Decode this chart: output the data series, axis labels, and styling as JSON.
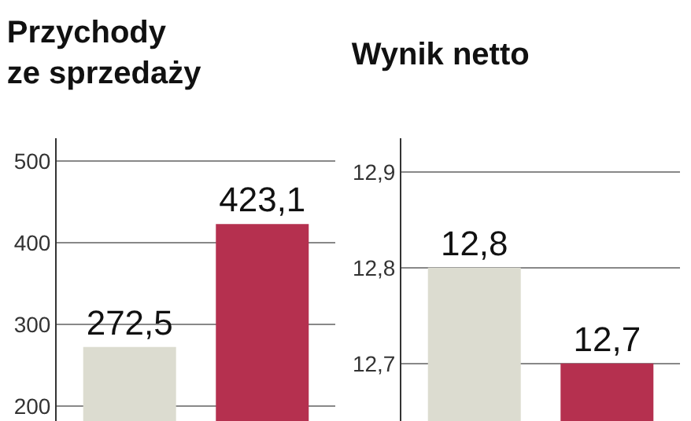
{
  "chart_data": [
    {
      "type": "bar",
      "title": "Przychody\nze sprzedaży",
      "categories": [
        null,
        null
      ],
      "values": [
        272.5,
        423.1
      ],
      "colors": [
        "#dcdcd0",
        "#b5304f"
      ],
      "value_labels": [
        "272,5",
        "423,1"
      ],
      "ylim": [
        182,
        528
      ],
      "yticks": [
        200,
        300,
        400,
        500
      ],
      "grid": "y",
      "tick_labels": "y"
    },
    {
      "type": "bar",
      "title": "Wynik netto",
      "categories": [
        null,
        null
      ],
      "values": [
        12.8,
        12.7
      ],
      "colors": [
        "#dcdcd0",
        "#b5304f"
      ],
      "value_labels": [
        "12,8",
        "12,7"
      ],
      "ylim": [
        12.64,
        12.935
      ],
      "yticks": [
        {
          "value": 12.7,
          "label": "12,7"
        },
        {
          "value": 12.8,
          "label": "12,8"
        },
        {
          "value": 12.9,
          "label": "12,9"
        }
      ],
      "grid": "y",
      "tick_labels": "y"
    }
  ]
}
